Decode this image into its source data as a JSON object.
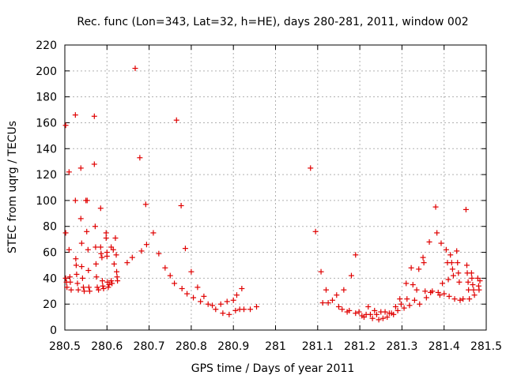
{
  "chart_data": {
    "type": "scatter",
    "title": "Rec. func (Lon=343, Lat=32, h=HE), days 280-281, 2011, window 002",
    "xlabel": "GPS time / Days of year 2011",
    "ylabel": "STEC from uqrg / TECUs",
    "xlim": [
      280.5,
      281.5
    ],
    "ylim": [
      0,
      220
    ],
    "xticks": [
      "280.5",
      "280.6",
      "280.7",
      "280.8",
      "280.9",
      "281",
      "281.1",
      "281.2",
      "281.3",
      "281.4",
      "281.5"
    ],
    "yticks": [
      "0",
      "20",
      "40",
      "60",
      "80",
      "100",
      "120",
      "140",
      "160",
      "180",
      "200",
      "220"
    ],
    "grid": true,
    "legend": "none",
    "marker": "+",
    "color": "#e00000",
    "points": [
      [
        280.502,
        158
      ],
      [
        280.502,
        75
      ],
      [
        280.502,
        40
      ],
      [
        280.504,
        37
      ],
      [
        280.505,
        33
      ],
      [
        280.51,
        122
      ],
      [
        280.51,
        62
      ],
      [
        280.512,
        41
      ],
      [
        280.513,
        37
      ],
      [
        280.515,
        31
      ],
      [
        280.525,
        166
      ],
      [
        280.525,
        100
      ],
      [
        280.526,
        55
      ],
      [
        280.527,
        50
      ],
      [
        280.528,
        43
      ],
      [
        280.53,
        36
      ],
      [
        280.532,
        31
      ],
      [
        280.538,
        125
      ],
      [
        280.538,
        86
      ],
      [
        280.54,
        67
      ],
      [
        280.54,
        49
      ],
      [
        280.542,
        40
      ],
      [
        280.544,
        33
      ],
      [
        280.546,
        30
      ],
      [
        280.55,
        100
      ],
      [
        280.552,
        76
      ],
      [
        280.553,
        100
      ],
      [
        280.555,
        62
      ],
      [
        280.556,
        46
      ],
      [
        280.557,
        33
      ],
      [
        280.559,
        30
      ],
      [
        280.57,
        165
      ],
      [
        280.57,
        128
      ],
      [
        280.572,
        80
      ],
      [
        280.573,
        64
      ],
      [
        280.574,
        51
      ],
      [
        280.575,
        41
      ],
      [
        280.577,
        33
      ],
      [
        280.58,
        31
      ],
      [
        280.585,
        94
      ],
      [
        280.585,
        64
      ],
      [
        280.586,
        59
      ],
      [
        280.588,
        56
      ],
      [
        280.589,
        38
      ],
      [
        280.59,
        34
      ],
      [
        280.592,
        32
      ],
      [
        280.598,
        75
      ],
      [
        280.598,
        71
      ],
      [
        280.6,
        60
      ],
      [
        280.6,
        57
      ],
      [
        280.601,
        37
      ],
      [
        280.603,
        33
      ],
      [
        280.605,
        35
      ],
      [
        280.61,
        64
      ],
      [
        280.61,
        38
      ],
      [
        280.612,
        36
      ],
      [
        280.615,
        62
      ],
      [
        280.617,
        51
      ],
      [
        280.62,
        71
      ],
      [
        280.622,
        58
      ],
      [
        280.623,
        45
      ],
      [
        280.624,
        41
      ],
      [
        280.625,
        38
      ],
      [
        280.648,
        52
      ],
      [
        280.66,
        56
      ],
      [
        280.667,
        202
      ],
      [
        280.678,
        133
      ],
      [
        280.682,
        61
      ],
      [
        280.692,
        97
      ],
      [
        280.694,
        66
      ],
      [
        280.71,
        75
      ],
      [
        280.723,
        59
      ],
      [
        280.738,
        48
      ],
      [
        280.75,
        42
      ],
      [
        280.76,
        36
      ],
      [
        280.765,
        162
      ],
      [
        280.776,
        96
      ],
      [
        280.778,
        32
      ],
      [
        280.786,
        63
      ],
      [
        280.79,
        28
      ],
      [
        280.8,
        45
      ],
      [
        280.805,
        25
      ],
      [
        280.815,
        33
      ],
      [
        280.822,
        22
      ],
      [
        280.83,
        26
      ],
      [
        280.84,
        20
      ],
      [
        280.85,
        19
      ],
      [
        280.858,
        16
      ],
      [
        280.87,
        20
      ],
      [
        280.875,
        13
      ],
      [
        280.885,
        22
      ],
      [
        280.89,
        12
      ],
      [
        280.9,
        23
      ],
      [
        280.905,
        15
      ],
      [
        280.908,
        27
      ],
      [
        280.915,
        16
      ],
      [
        280.92,
        32
      ],
      [
        280.925,
        16
      ],
      [
        280.94,
        16
      ],
      [
        280.955,
        18
      ],
      [
        281.083,
        125
      ],
      [
        281.095,
        76
      ],
      [
        281.108,
        45
      ],
      [
        281.112,
        21
      ],
      [
        281.12,
        31
      ],
      [
        281.125,
        21
      ],
      [
        281.135,
        23
      ],
      [
        281.145,
        27
      ],
      [
        281.15,
        18
      ],
      [
        281.158,
        16
      ],
      [
        281.162,
        31
      ],
      [
        281.17,
        14
      ],
      [
        281.175,
        15
      ],
      [
        281.18,
        42
      ],
      [
        281.19,
        58
      ],
      [
        281.19,
        13
      ],
      [
        281.198,
        14
      ],
      [
        281.205,
        11
      ],
      [
        281.21,
        10
      ],
      [
        281.215,
        12
      ],
      [
        281.22,
        18
      ],
      [
        281.225,
        12
      ],
      [
        281.23,
        9
      ],
      [
        281.235,
        15
      ],
      [
        281.24,
        12
      ],
      [
        281.245,
        8
      ],
      [
        281.25,
        14
      ],
      [
        281.255,
        9
      ],
      [
        281.26,
        14
      ],
      [
        281.265,
        10
      ],
      [
        281.27,
        13
      ],
      [
        281.275,
        13
      ],
      [
        281.28,
        12
      ],
      [
        281.285,
        18
      ],
      [
        281.29,
        15
      ],
      [
        281.295,
        24
      ],
      [
        281.298,
        20
      ],
      [
        281.305,
        17
      ],
      [
        281.31,
        36
      ],
      [
        281.312,
        24
      ],
      [
        281.318,
        19
      ],
      [
        281.322,
        48
      ],
      [
        281.326,
        35
      ],
      [
        281.33,
        23
      ],
      [
        281.335,
        31
      ],
      [
        281.34,
        47
      ],
      [
        281.342,
        20
      ],
      [
        281.35,
        56
      ],
      [
        281.352,
        52
      ],
      [
        281.355,
        30
      ],
      [
        281.358,
        25
      ],
      [
        281.365,
        68
      ],
      [
        281.368,
        29
      ],
      [
        281.372,
        30
      ],
      [
        281.38,
        95
      ],
      [
        281.383,
        75
      ],
      [
        281.386,
        29
      ],
      [
        281.39,
        27
      ],
      [
        281.393,
        67
      ],
      [
        281.396,
        36
      ],
      [
        281.4,
        28
      ],
      [
        281.405,
        62
      ],
      [
        281.408,
        52
      ],
      [
        281.41,
        39
      ],
      [
        281.412,
        26
      ],
      [
        281.415,
        58
      ],
      [
        281.418,
        52
      ],
      [
        281.42,
        47
      ],
      [
        281.422,
        42
      ],
      [
        281.425,
        24
      ],
      [
        281.43,
        61
      ],
      [
        281.432,
        52
      ],
      [
        281.434,
        44
      ],
      [
        281.436,
        37
      ],
      [
        281.438,
        23
      ],
      [
        281.445,
        24
      ],
      [
        281.452,
        93
      ],
      [
        281.454,
        50
      ],
      [
        281.455,
        44
      ],
      [
        281.457,
        37
      ],
      [
        281.458,
        31
      ],
      [
        281.46,
        24
      ],
      [
        281.465,
        44
      ],
      [
        281.466,
        40
      ],
      [
        281.468,
        35
      ],
      [
        281.47,
        31
      ],
      [
        281.472,
        27
      ],
      [
        281.48,
        40
      ],
      [
        281.482,
        34
      ],
      [
        281.483,
        31
      ],
      [
        281.485,
        38
      ]
    ]
  }
}
